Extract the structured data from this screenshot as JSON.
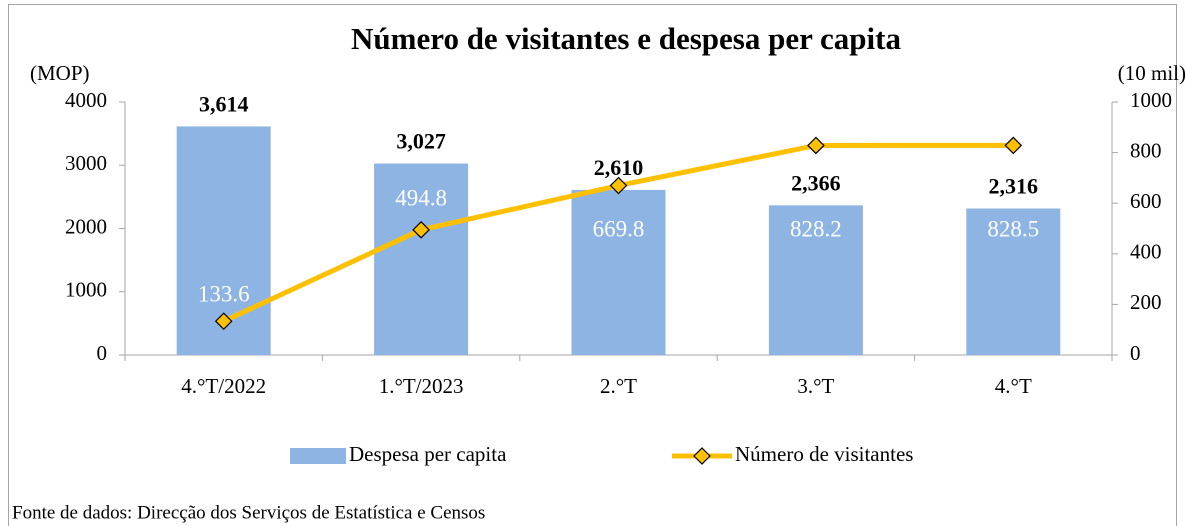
{
  "chart_data": {
    "type": "bar",
    "title": "Número de visitantes e despesa per capita",
    "y_label": "(MOP)",
    "y2_label": "(10 mil)",
    "source": "Fonte de dados: Direcção dos Serviços de Estatística e Censos",
    "categories": [
      "4.°T/2022",
      "1.°T/2023",
      "2.°T",
      "3.°T",
      "4.°T"
    ],
    "series": [
      {
        "name": "Despesa per capita",
        "type": "bar",
        "color": "#8db4e2",
        "values": [
          3614,
          3027,
          2610,
          2366,
          2316
        ],
        "value_labels": [
          "3,614",
          "3,027",
          "2,610",
          "2,366",
          "2,316"
        ]
      },
      {
        "name": "Número de visitantes",
        "type": "line",
        "axis": "y2",
        "color": "#ffc000",
        "values": [
          133.6,
          494.8,
          669.8,
          828.2,
          828.5
        ]
      }
    ],
    "ylim": [
      0,
      4000
    ],
    "yticks": [
      0,
      1000,
      2000,
      3000,
      4000
    ],
    "y2lim": [
      0,
      1000
    ],
    "y2ticks": [
      0,
      200,
      400,
      600,
      800,
      1000
    ],
    "legend": "bottom"
  }
}
